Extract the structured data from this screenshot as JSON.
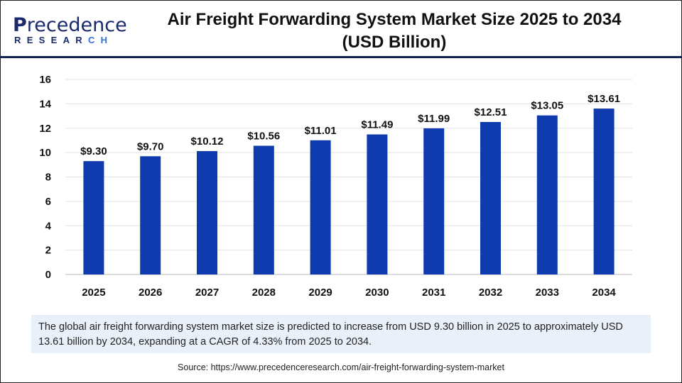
{
  "logo": {
    "text_main": "Precedence",
    "text_sub": "RESEARCH"
  },
  "header": {
    "title_line1": "Air Freight Forwarding System Market Size 2025 to 2034",
    "title_line2": "(USD Billion)"
  },
  "colors": {
    "bar": "#0f3bae",
    "header_rule": "#15214f",
    "desc_bg": "#eaf0fa"
  },
  "chart_data": {
    "type": "bar",
    "categories": [
      "2025",
      "2026",
      "2027",
      "2028",
      "2029",
      "2030",
      "2031",
      "2032",
      "2033",
      "2034"
    ],
    "values": [
      9.3,
      9.7,
      10.12,
      10.56,
      11.01,
      11.49,
      11.99,
      12.51,
      13.05,
      13.61
    ],
    "data_labels": [
      "$9.30",
      "$9.70",
      "$10.12",
      "$10.56",
      "$11.01",
      "$11.49",
      "$11.99",
      "$12.51",
      "$13.05",
      "$13.61"
    ],
    "yticks": [
      0,
      2,
      4,
      6,
      8,
      10,
      12,
      14,
      16
    ],
    "ylim": [
      0,
      16
    ],
    "grid": true,
    "title": "Air Freight Forwarding System Market Size 2025 to 2034 (USD Billion)"
  },
  "description": "The global air freight forwarding system market size is predicted to increase from USD 9.30 billion in 2025 to approximately USD 13.61 billion by 2034, expanding at a CAGR of 4.33% from 2025 to 2034.",
  "source": "Source: https://www.precedenceresearch.com/air-freight-forwarding-system-market"
}
